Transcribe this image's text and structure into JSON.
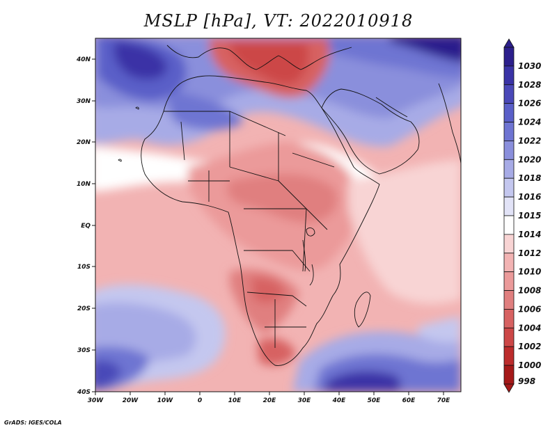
{
  "title": "MSLP [hPa], VT: 2022010918",
  "credit": "GrADS: IGES/COLA",
  "axes": {
    "lon_labels": [
      "30W",
      "20W",
      "10W",
      "0",
      "10E",
      "20E",
      "30E",
      "40E",
      "50E",
      "60E",
      "70E"
    ],
    "lat_labels": [
      "40N",
      "30N",
      "20N",
      "10N",
      "EQ",
      "10S",
      "20S",
      "30S",
      "40S"
    ]
  },
  "legend": {
    "labels": [
      "1030",
      "1028",
      "1026",
      "1024",
      "1022",
      "1020",
      "1018",
      "1016",
      "1015",
      "1014",
      "1012",
      "1010",
      "1008",
      "1006",
      "1004",
      "1002",
      "1000",
      "998"
    ],
    "colors": [
      "#2c1f8c",
      "#3a33a6",
      "#4a48b8",
      "#5a5fc8",
      "#6e74d2",
      "#8a8fdc",
      "#a7abe6",
      "#c4c7ef",
      "#e2e3f7",
      "#ffffff",
      "#f8d4d4",
      "#f2b3b3",
      "#eb9a9a",
      "#e07f7f",
      "#d76262",
      "#cc4747",
      "#bc2c2c",
      "#a51919"
    ]
  },
  "colors": {
    "land_outline": "#111111",
    "background": "#ffffff"
  }
}
